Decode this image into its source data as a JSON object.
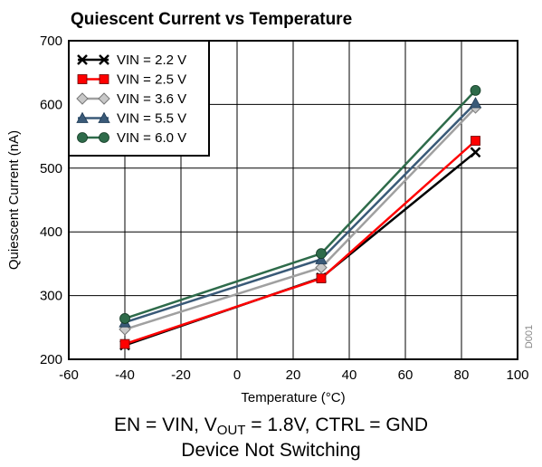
{
  "chart_data": {
    "type": "line",
    "title": "Quiescent Current vs Temperature",
    "xlabel": "Temperature (°C)",
    "ylabel": "Quiescent Current (nA)",
    "xlim": [
      -60,
      100
    ],
    "ylim": [
      200,
      700
    ],
    "xticks": [
      -60,
      -40,
      -20,
      0,
      20,
      40,
      60,
      80,
      100
    ],
    "yticks": [
      200,
      300,
      400,
      500,
      600,
      700
    ],
    "grid": true,
    "legend_position": "top-left",
    "watermark": "D001",
    "x": [
      -40,
      30,
      85
    ],
    "series": [
      {
        "name": "VIN = 2.2 V",
        "values": [
          222,
          328,
          525
        ],
        "color": "#000000",
        "marker": "x"
      },
      {
        "name": "VIN = 2.5 V",
        "values": [
          224,
          327,
          543
        ],
        "color": "#ff0000",
        "marker": "square"
      },
      {
        "name": "VIN = 3.6 V",
        "values": [
          247,
          344,
          595
        ],
        "color": "#a0a0a0",
        "marker": "diamond"
      },
      {
        "name": "VIN = 5.5 V",
        "values": [
          258,
          357,
          602
        ],
        "color": "#3a5a78",
        "marker": "triangle"
      },
      {
        "name": "VIN = 6.0 V",
        "values": [
          264,
          366,
          622
        ],
        "color": "#2e6b4a",
        "marker": "circle"
      }
    ]
  },
  "caption": {
    "line1_pre": "EN = VIN, V",
    "line1_sub": "OUT",
    "line1_post": " = 1.8V, CTRL = GND",
    "line2": "Device Not Switching"
  }
}
